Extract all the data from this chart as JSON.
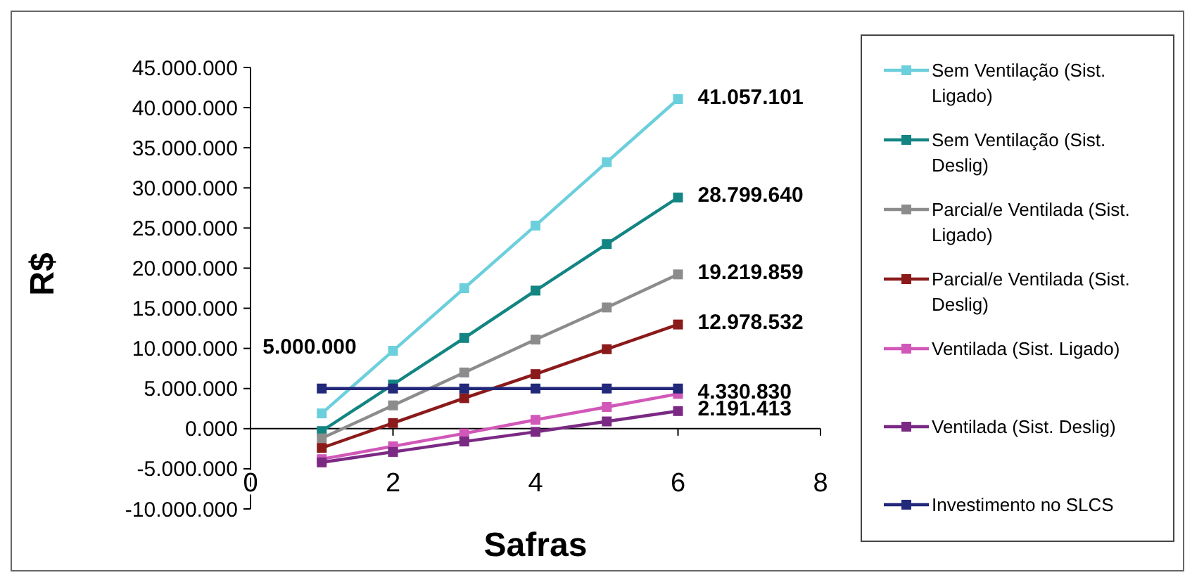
{
  "chart_data": {
    "type": "line",
    "xlabel": "Safras",
    "ylabel": "R$",
    "x": [
      1,
      2,
      3,
      4,
      5,
      6
    ],
    "series": [
      {
        "name": "Sem Ventilação (Sist. Ligado)",
        "color": "#6ccfdc",
        "values": [
          1900000,
          9700000,
          17500000,
          25300000,
          33200000,
          41057101
        ],
        "value_labels": [
          null,
          null,
          null,
          null,
          null,
          "41.057.101"
        ]
      },
      {
        "name": "Sem Ventilação (Sist. Deslig)",
        "color": "#138582",
        "values": [
          -300000,
          5500000,
          11300000,
          17200000,
          23000000,
          28799640
        ],
        "value_labels": [
          null,
          null,
          null,
          null,
          null,
          "28.799.640"
        ]
      },
      {
        "name": "Parcial/e Ventilada (Sist. Ligado)",
        "color": "#8c8c8c",
        "values": [
          -1200000,
          2900000,
          7000000,
          11100000,
          15100000,
          19219859
        ],
        "value_labels": [
          null,
          null,
          null,
          null,
          null,
          "19.219.859"
        ]
      },
      {
        "name": "Parcial/e Ventilada (Sist. Deslig)",
        "color": "#8b1a1a",
        "values": [
          -2400000,
          700000,
          3800000,
          6800000,
          9900000,
          12978532
        ],
        "value_labels": [
          null,
          null,
          null,
          null,
          null,
          "12.978.532"
        ]
      },
      {
        "name": "Ventilada (Sist. Ligado)",
        "color": "#d158b8",
        "values": [
          -3800000,
          -2200000,
          -600000,
          1100000,
          2700000,
          4330830
        ],
        "value_labels": [
          null,
          null,
          null,
          null,
          null,
          "4.330.830"
        ]
      },
      {
        "name": "Ventilada (Sist. Deslig)",
        "color": "#7b2a84",
        "values": [
          -4200000,
          -2900000,
          -1600000,
          -400000,
          900000,
          2191413
        ],
        "value_labels": [
          null,
          null,
          null,
          null,
          null,
          "2.191.413"
        ]
      },
      {
        "name": "Investimento no SLCS",
        "color": "#22287a",
        "values": [
          5000000,
          5000000,
          5000000,
          5000000,
          5000000,
          5000000
        ],
        "value_labels": [
          "5.000.000",
          null,
          null,
          null,
          null,
          null
        ]
      }
    ],
    "xlim": [
      0,
      8
    ],
    "xticks": [
      0,
      2,
      4,
      6,
      8
    ],
    "ylim": [
      -10000000,
      45000000
    ],
    "yticks": [
      {
        "value": -10000000,
        "label": "-10.000.000"
      },
      {
        "value": -5000000,
        "label": "-5.000.000"
      },
      {
        "value": 0,
        "label": "0.000"
      },
      {
        "value": 5000000,
        "label": "5.000.000"
      },
      {
        "value": 10000000,
        "label": "10.000.000"
      },
      {
        "value": 15000000,
        "label": "15.000.000"
      },
      {
        "value": 20000000,
        "label": "20.000.000"
      },
      {
        "value": 25000000,
        "label": "25.000.000"
      },
      {
        "value": 30000000,
        "label": "30.000.000"
      },
      {
        "value": 35000000,
        "label": "35.000.000"
      },
      {
        "value": 40000000,
        "label": "40.000.000"
      },
      {
        "value": 45000000,
        "label": "45.000.000"
      }
    ],
    "grid": false,
    "legend": "right",
    "marker": "square",
    "line_style": "solid"
  }
}
